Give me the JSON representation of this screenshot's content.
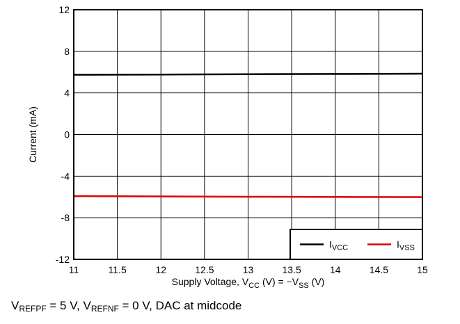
{
  "chart_data": {
    "type": "line",
    "xlabel": {
      "prefix": "Supply Voltage, V",
      "sub1": "CC",
      "mid": " (V) = −V",
      "sub2": "SS",
      "suffix": " (V)"
    },
    "ylabel": "Current (mA)",
    "xlim": [
      11,
      15
    ],
    "ylim": [
      -12,
      12
    ],
    "xticks": [
      11,
      11.5,
      12,
      12.5,
      13,
      13.5,
      14,
      14.5,
      15
    ],
    "xtick_labels": [
      "11",
      "11.5",
      "12",
      "12.5",
      "13",
      "13.5",
      "14",
      "14.5",
      "15"
    ],
    "yticks": [
      -12,
      -8,
      -4,
      0,
      4,
      8,
      12
    ],
    "ytick_labels": [
      "-12",
      "-8",
      "-4",
      "0",
      "4",
      "8",
      "12"
    ],
    "grid": true,
    "legend_position": "bottom-right",
    "series": [
      {
        "name": "IVCC",
        "name_main": "I",
        "name_sub": "VCC",
        "color": "#000000",
        "x": [
          11,
          12,
          13,
          14,
          15
        ],
        "y": [
          5.75,
          5.77,
          5.8,
          5.82,
          5.85
        ]
      },
      {
        "name": "IVSS",
        "name_main": "I",
        "name_sub": "VSS",
        "color": "#e00000",
        "x": [
          11,
          12,
          13,
          14,
          15
        ],
        "y": [
          -5.92,
          -5.95,
          -5.98,
          -6.0,
          -6.02
        ]
      }
    ]
  },
  "footnote": {
    "v1": "V",
    "s1": "REFPF",
    "t1": " = 5 V, V",
    "s2": "REFNF",
    "t2": " = 0 V, DAC at midcode"
  }
}
